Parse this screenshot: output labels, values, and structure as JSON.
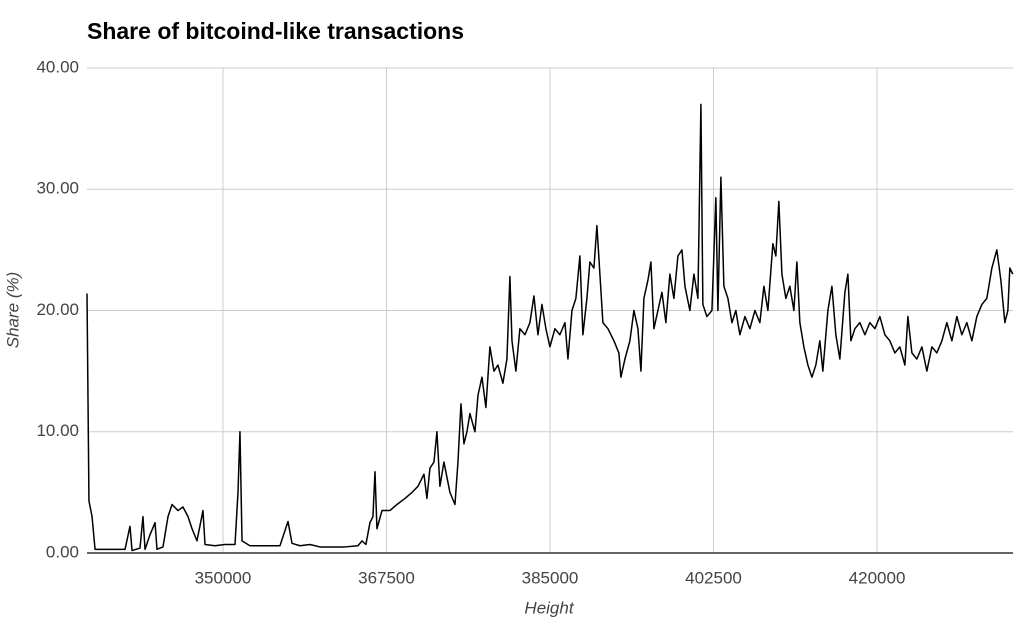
{
  "chart_data": {
    "type": "line",
    "title": "Share of bitcoind-like transactions",
    "x_label": "Height",
    "y_label": "Share (%)",
    "color": "#000000",
    "grid": true,
    "xlim": [
      335450,
      434550
    ],
    "xticks": [
      350000,
      367500,
      385000,
      402500,
      420000
    ],
    "ylim": [
      0,
      40
    ],
    "yticks": [
      {
        "value": 0,
        "label": "0.00"
      },
      {
        "value": 10,
        "label": "10.00"
      },
      {
        "value": 20,
        "label": "20.00"
      },
      {
        "value": 30,
        "label": "30.00"
      },
      {
        "value": 40,
        "label": "40.00"
      }
    ],
    "x": [
      335450,
      335660,
      335990,
      336310,
      337910,
      339520,
      340050,
      340270,
      341120,
      341440,
      341660,
      342190,
      342730,
      342940,
      343580,
      344120,
      344550,
      345190,
      345720,
      346260,
      346690,
      347220,
      347860,
      348080,
      349150,
      350220,
      351290,
      351610,
      351820,
      352040,
      352890,
      354500,
      356100,
      356960,
      357390,
      358240,
      359310,
      360380,
      361450,
      363060,
      364450,
      364880,
      365300,
      365730,
      366050,
      366270,
      366480,
      367020,
      367870,
      368620,
      369480,
      370230,
      370870,
      371510,
      371830,
      372150,
      372580,
      372900,
      373220,
      373650,
      374290,
      374830,
      375150,
      375470,
      375790,
      376110,
      376430,
      376970,
      377290,
      377720,
      378140,
      378570,
      379000,
      379430,
      379960,
      380390,
      380710,
      380930,
      381350,
      381780,
      382320,
      382850,
      383280,
      383710,
      384140,
      384560,
      384990,
      385530,
      386060,
      386600,
      386920,
      387350,
      387770,
      388200,
      388520,
      388950,
      389270,
      389700,
      390020,
      390340,
      390660,
      391200,
      391840,
      392370,
      392590,
      393020,
      393550,
      393980,
      394410,
      394730,
      395050,
      395480,
      395800,
      396120,
      396550,
      396980,
      397400,
      397830,
      398260,
      398690,
      399120,
      399440,
      399970,
      400400,
      400830,
      401150,
      401360,
      401790,
      402330,
      402750,
      402970,
      403290,
      403610,
      404040,
      404470,
      404890,
      405320,
      405860,
      406390,
      406930,
      407460,
      407890,
      408320,
      408850,
      409170,
      409490,
      409820,
      410240,
      410670,
      411100,
      411420,
      411740,
      412170,
      412600,
      413030,
      413450,
      413880,
      414200,
      414740,
      415170,
      415590,
      416020,
      416560,
      416880,
      417200,
      417630,
      418160,
      418700,
      419230,
      419770,
      420300,
      420840,
      421370,
      421910,
      422440,
      422980,
      423300,
      423730,
      424260,
      424800,
      425330,
      425870,
      426400,
      426940,
      427470,
      428010,
      428540,
      429080,
      429610,
      430150,
      430680,
      431220,
      431750,
      432290,
      432820,
      433250,
      433680,
      434000,
      434210,
      434530
    ],
    "values": [
      21.4,
      4.3,
      3.0,
      0.3,
      0.3,
      0.3,
      2.2,
      0.2,
      0.4,
      3.0,
      0.3,
      1.5,
      2.5,
      0.3,
      0.5,
      3.0,
      4.0,
      3.5,
      3.8,
      3.0,
      2.0,
      1.0,
      3.5,
      0.7,
      0.6,
      0.7,
      0.7,
      5.0,
      10.0,
      1.0,
      0.6,
      0.6,
      0.6,
      2.6,
      0.8,
      0.6,
      0.7,
      0.5,
      0.5,
      0.5,
      0.6,
      1.0,
      0.7,
      2.5,
      3.0,
      6.7,
      2.0,
      3.5,
      3.5,
      4.0,
      4.5,
      5.0,
      5.5,
      6.5,
      4.5,
      7.0,
      7.5,
      10.0,
      5.5,
      7.5,
      5.0,
      4.0,
      7.5,
      12.3,
      9.0,
      10.0,
      11.5,
      10.0,
      13.0,
      14.5,
      12.0,
      17.0,
      15.0,
      15.5,
      14.0,
      16.0,
      22.8,
      17.5,
      15.0,
      18.5,
      18.0,
      19.0,
      21.2,
      18.0,
      20.5,
      18.5,
      17.0,
      18.5,
      18.0,
      19.0,
      16.0,
      20.0,
      21.0,
      24.5,
      18.0,
      21.0,
      24.0,
      23.5,
      27.0,
      23.0,
      19.0,
      18.5,
      17.5,
      16.5,
      14.5,
      16.0,
      17.5,
      20.0,
      18.5,
      15.0,
      21.0,
      22.5,
      24.0,
      18.5,
      20.0,
      21.5,
      19.0,
      23.0,
      21.0,
      24.5,
      25.0,
      22.0,
      20.0,
      23.0,
      21.0,
      37.0,
      20.5,
      19.5,
      20.0,
      29.3,
      20.0,
      31.0,
      22.0,
      21.0,
      19.0,
      20.0,
      18.0,
      19.5,
      18.5,
      20.0,
      19.0,
      22.0,
      20.0,
      25.5,
      24.5,
      29.0,
      23.0,
      21.0,
      22.0,
      20.0,
      24.0,
      19.0,
      17.0,
      15.5,
      14.5,
      15.5,
      17.5,
      15.0,
      20.0,
      22.0,
      18.0,
      16.0,
      21.5,
      23.0,
      17.5,
      18.5,
      19.0,
      18.0,
      19.0,
      18.5,
      19.5,
      18.0,
      17.5,
      16.5,
      17.0,
      15.5,
      19.5,
      16.5,
      16.0,
      17.0,
      15.0,
      17.0,
      16.5,
      17.5,
      19.0,
      17.5,
      19.5,
      18.0,
      19.0,
      17.5,
      19.5,
      20.5,
      21.0,
      23.5,
      25.0,
      22.5,
      19.0,
      20.0,
      23.5,
      23.0
    ]
  }
}
